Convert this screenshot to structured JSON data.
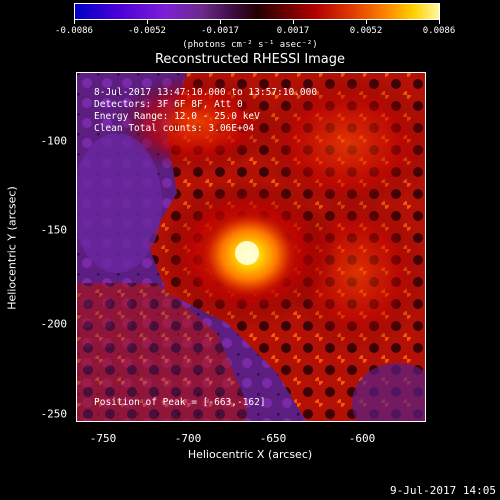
{
  "colorbar": {
    "ticks": [
      "-0.0086",
      "-0.0052",
      "-0.0017",
      "0.0017",
      "0.0052",
      "0.0086"
    ],
    "units": "(photons cm⁻² s⁻¹ asec⁻²)"
  },
  "title": "Reconstructed RHESSI Image",
  "annotations": {
    "time_range": "8-Jul-2017 13:47:10.000 to 13:57:10.000",
    "detectors": "Detectors: 3F 6F 8F, Att 0",
    "energy": "Energy Range: 12.0 - 25.0 keV",
    "clean": "Clean    Total counts: 3.06E+04",
    "peak": "Position of Peak = [-663,-162]"
  },
  "axes": {
    "xlabel": "Heliocentric X (arcsec)",
    "ylabel": "Heliocentric Y (arcsec)",
    "xticks": [
      "-750",
      "-700",
      "-650",
      "-600"
    ],
    "yticks": [
      "-100",
      "-150",
      "-200",
      "-250"
    ]
  },
  "timestamp": "9-Jul-2017 14:05",
  "colors": {
    "background": "#000000",
    "text": "#ffffff",
    "negative": "#5a1a7a",
    "peak": "#ffffc0"
  }
}
